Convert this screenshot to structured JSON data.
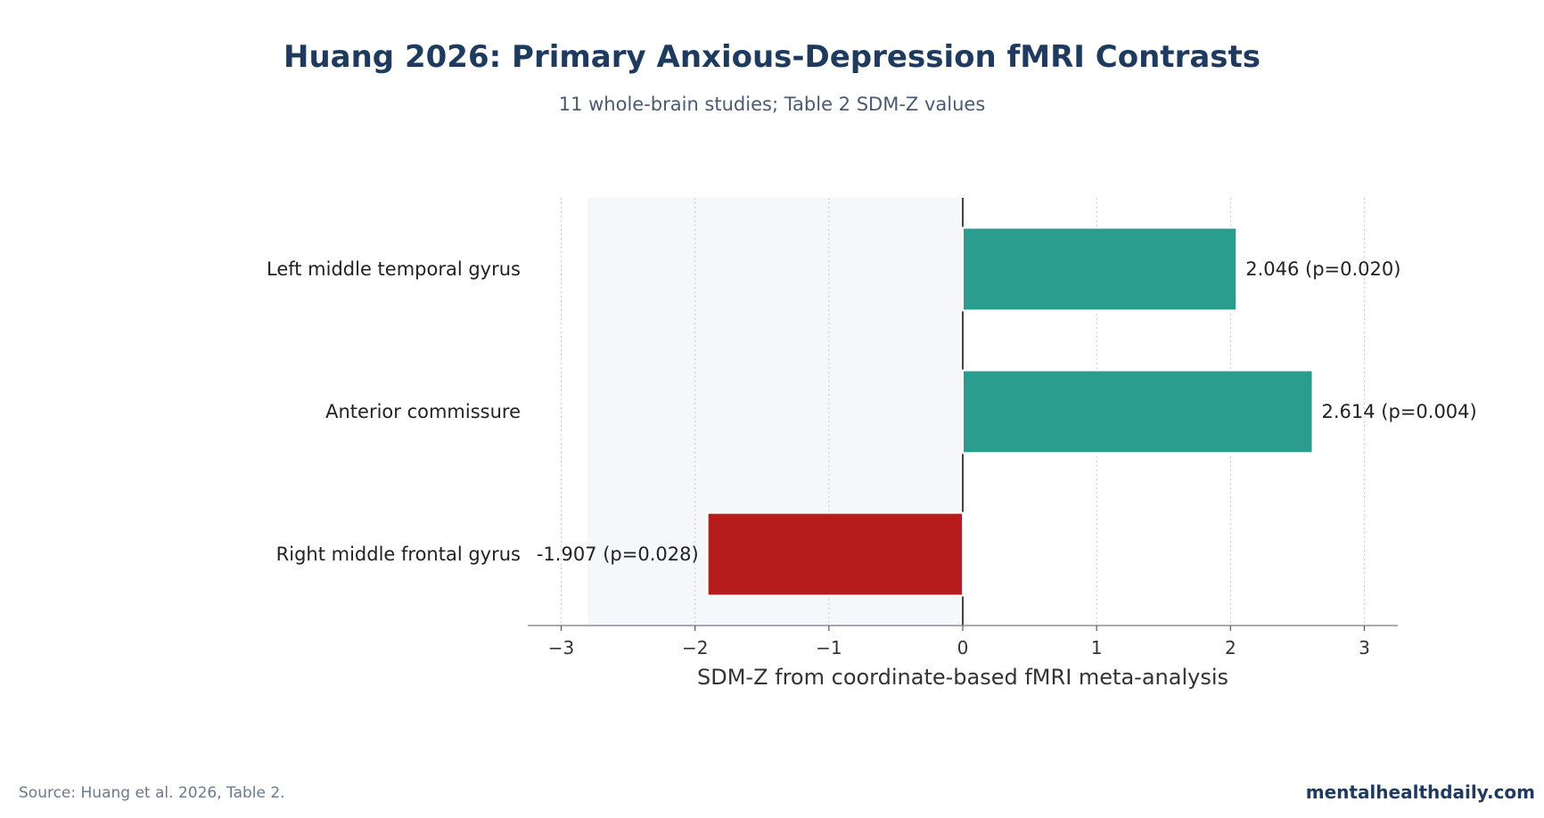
{
  "title": "Huang 2026: Primary Anxious-Depression fMRI Contrasts",
  "subtitle": "11 whole-brain studies; Table 2 SDM-Z values",
  "source": "Source: Huang et al. 2026, Table 2.",
  "brand": "mentalhealthdaily.com",
  "colors": {
    "positive": "#2a9d8f",
    "negative": "#b71c1c",
    "title": "#1f3a5f",
    "shade": "#f5f7fa"
  },
  "chart_data": {
    "type": "bar",
    "orientation": "horizontal",
    "categories": [
      "Left middle temporal gyrus",
      "Anterior commissure",
      "Right middle frontal gyrus"
    ],
    "values": [
      2.046,
      2.614,
      -1.907
    ],
    "data_labels": [
      "2.046 (p=0.020)",
      "2.614 (p=0.004)",
      "-1.907 (p=0.028)"
    ],
    "xlabel": "SDM-Z from coordinate-based fMRI meta-analysis",
    "xlim": [
      -3.25,
      3.25
    ],
    "xticks": [
      -3,
      -2,
      -1,
      0,
      1,
      2,
      3
    ],
    "xtick_labels": [
      "−3",
      "−2",
      "−1",
      "0",
      "1",
      "2",
      "3"
    ],
    "shaded_region": [
      -2.8,
      0
    ],
    "grid": "x-dotted",
    "zero_line": true
  }
}
